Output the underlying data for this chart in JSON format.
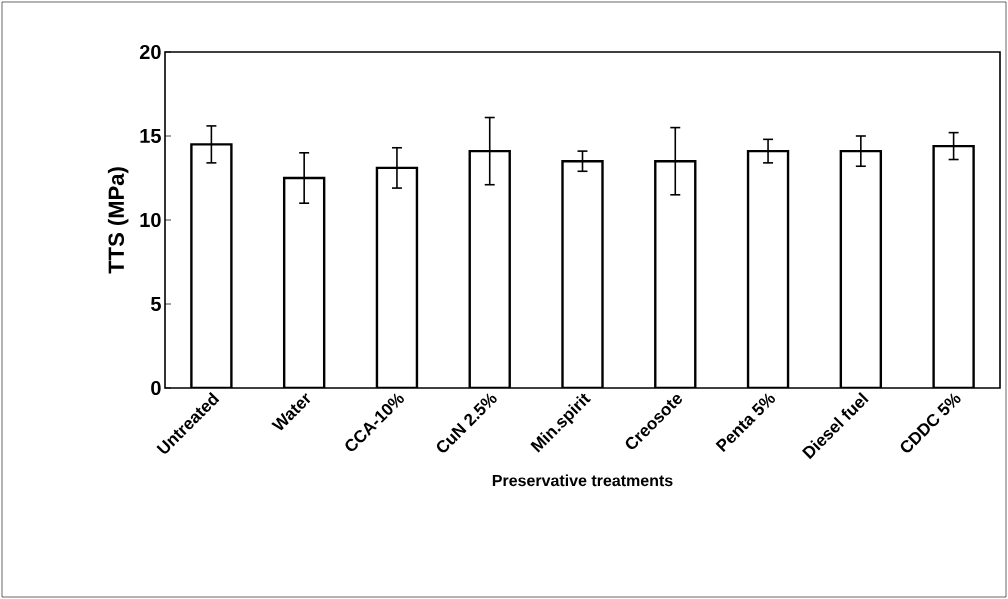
{
  "chart_data": {
    "type": "bar",
    "xlabel": "Preservative treatments",
    "ylabel": "TTS (MPa)",
    "categories": [
      "Untreated",
      "Water",
      "CCA-10%",
      "CuN 2.5%",
      "Min.spirit",
      "Creosote",
      "Penta 5%",
      "Diesel fuel",
      "CDDC 5%"
    ],
    "values": [
      14.5,
      12.5,
      13.1,
      14.1,
      13.5,
      13.5,
      14.1,
      14.1,
      14.4
    ],
    "errors": [
      1.1,
      1.5,
      1.2,
      2.0,
      0.6,
      2.0,
      0.7,
      0.9,
      0.8
    ],
    "color": "#ffffff",
    "ylim": [
      0,
      20
    ],
    "yticks": [
      0,
      5,
      10,
      15,
      20
    ],
    "grid": false
  }
}
